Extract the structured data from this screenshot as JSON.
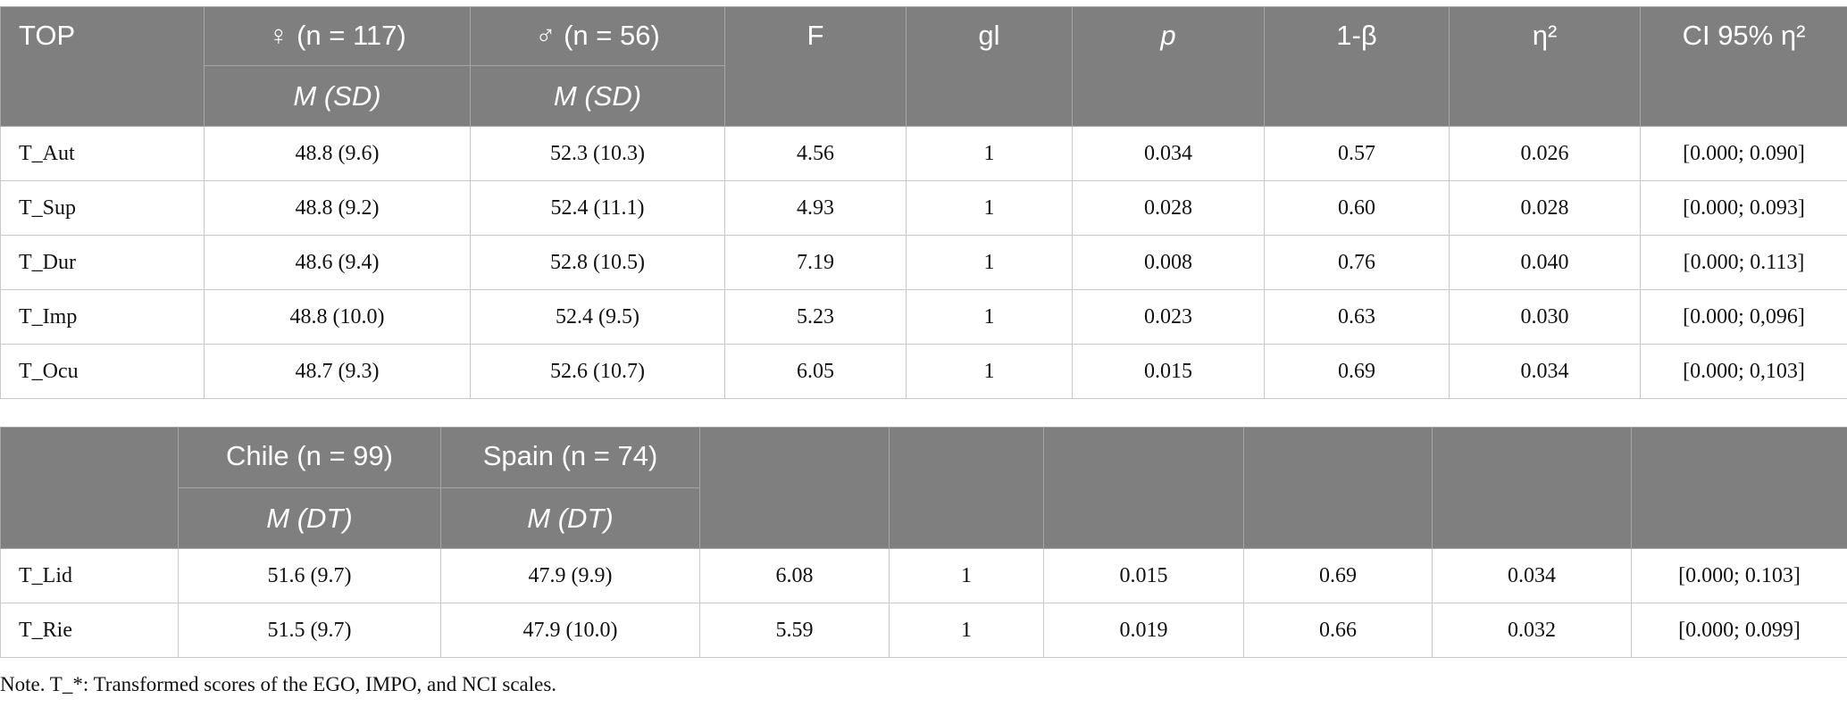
{
  "table1": {
    "header": {
      "first": "TOP",
      "groups": [
        "♀ (n = 117)",
        "♂ (n = 56)"
      ],
      "subheaders": [
        "M (SD)",
        "M (SD)"
      ],
      "stats": [
        "F",
        "gl",
        "p",
        "1-β",
        "η²",
        "CI 95% η²"
      ]
    },
    "rows": [
      [
        "T_Aut",
        "48.8 (9.6)",
        "52.3 (10.3)",
        "4.56",
        "1",
        "0.034",
        "0.57",
        "0.026",
        "[0.000; 0.090]"
      ],
      [
        "T_Sup",
        "48.8 (9.2)",
        "52.4 (11.1)",
        "4.93",
        "1",
        "0.028",
        "0.60",
        "0.028",
        "[0.000; 0.093]"
      ],
      [
        "T_Dur",
        "48.6 (9.4)",
        "52.8 (10.5)",
        "7.19",
        "1",
        "0.008",
        "0.76",
        "0.040",
        "[0.000; 0.113]"
      ],
      [
        "T_Imp",
        "48.8 (10.0)",
        "52.4 (9.5)",
        "5.23",
        "1",
        "0.023",
        "0.63",
        "0.030",
        "[0.000; 0,096]"
      ],
      [
        "T_Ocu",
        "48.7 (9.3)",
        "52.6 (10.7)",
        "6.05",
        "1",
        "0.015",
        "0.69",
        "0.034",
        "[0.000; 0,103]"
      ]
    ]
  },
  "table2": {
    "header": {
      "groups": [
        "Chile (n = 99)",
        "Spain (n = 74)"
      ],
      "subheaders": [
        "M (DT)",
        "M (DT)"
      ]
    },
    "rows": [
      [
        "T_Lid",
        "51.6 (9.7)",
        "47.9 (9.9)",
        "6.08",
        "1",
        "0.015",
        "0.69",
        "0.034",
        "[0.000; 0.103]"
      ],
      [
        "T_Rie",
        "51.5 (9.7)",
        "47.9 (10.0)",
        "5.59",
        "1",
        "0.019",
        "0.66",
        "0.032",
        "[0.000; 0.099]"
      ]
    ]
  },
  "note": "Note. T_*: Transformed scores of the EGO, IMPO, and NCI scales."
}
